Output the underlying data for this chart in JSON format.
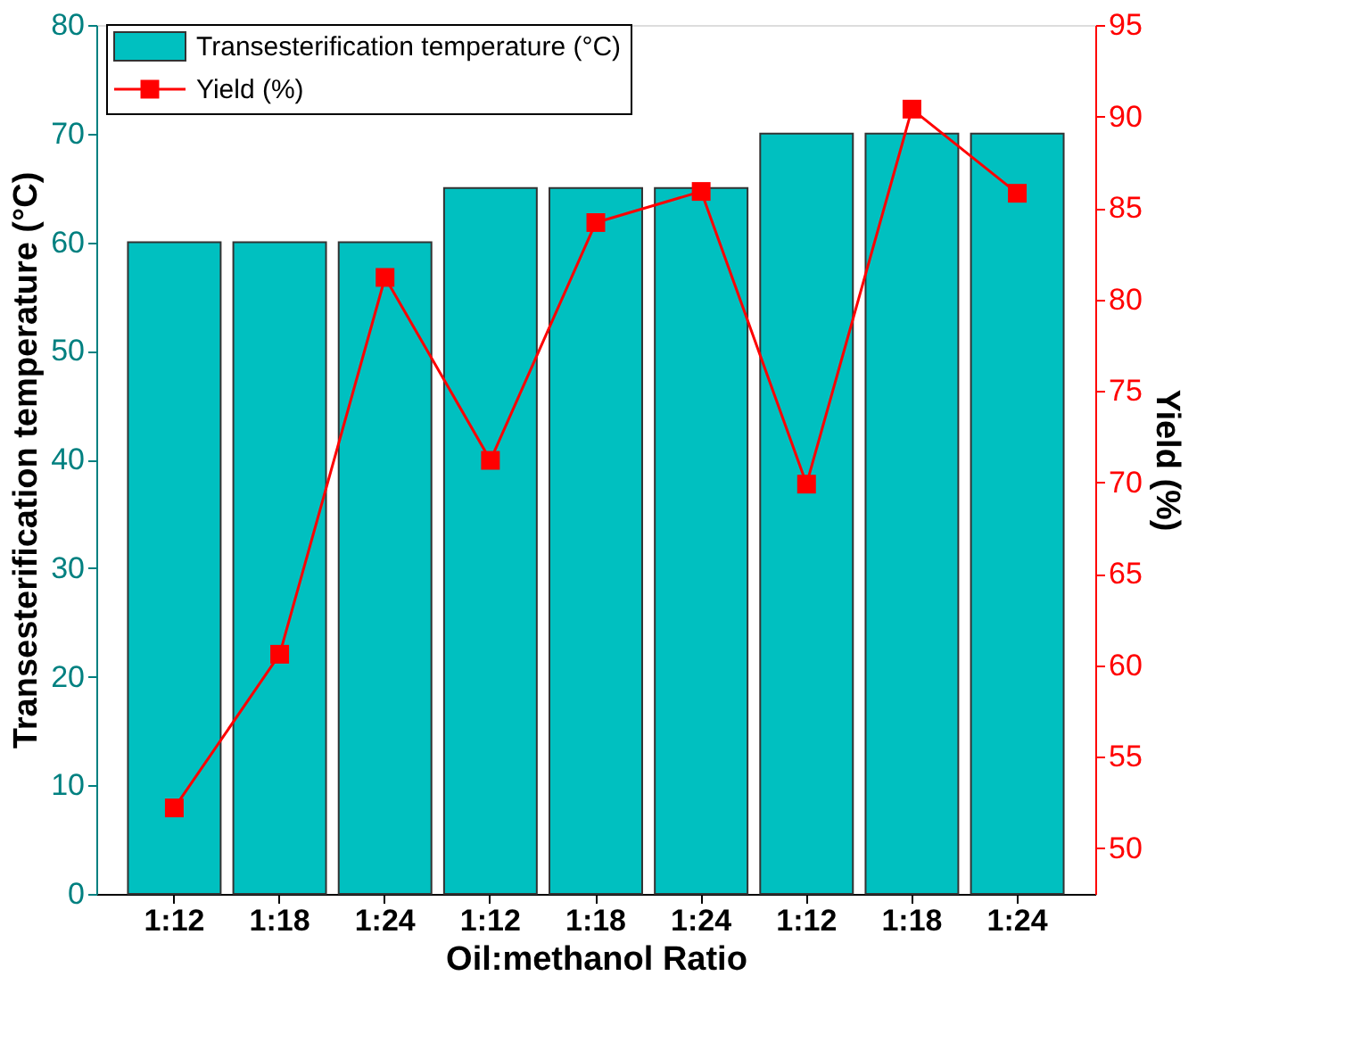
{
  "chart_data": {
    "type": "bar",
    "xlabel": "Oil:methanol Ratio",
    "ylabel": "Transesterification temperature (°C)",
    "y2label": "Yield (%)",
    "categories": [
      "1:12",
      "1:18",
      "1:24",
      "1:12",
      "1:18",
      "1:24",
      "1:12",
      "1:18",
      "1:24"
    ],
    "series": [
      {
        "name": "Transesterification temperature (°C)",
        "color": "#00c0c0",
        "values": [
          60,
          60,
          60,
          65,
          65,
          65,
          70,
          70,
          70
        ]
      },
      {
        "name": "Yield (%)",
        "type": "line",
        "axis": "y2",
        "color": "#ff0000",
        "marker": "square",
        "values": [
          52.2,
          60.6,
          81.2,
          71.2,
          84.2,
          85.9,
          69.9,
          90.4,
          85.8
        ]
      }
    ],
    "ylim": [
      0,
      80
    ],
    "yticks": [
      0,
      10,
      20,
      30,
      40,
      50,
      60,
      70,
      80
    ],
    "y2lim": [
      47.5,
      95
    ],
    "y2ticks": [
      50,
      55,
      60,
      65,
      70,
      75,
      80,
      85,
      90,
      95
    ],
    "legend": "top left",
    "grid": false
  }
}
